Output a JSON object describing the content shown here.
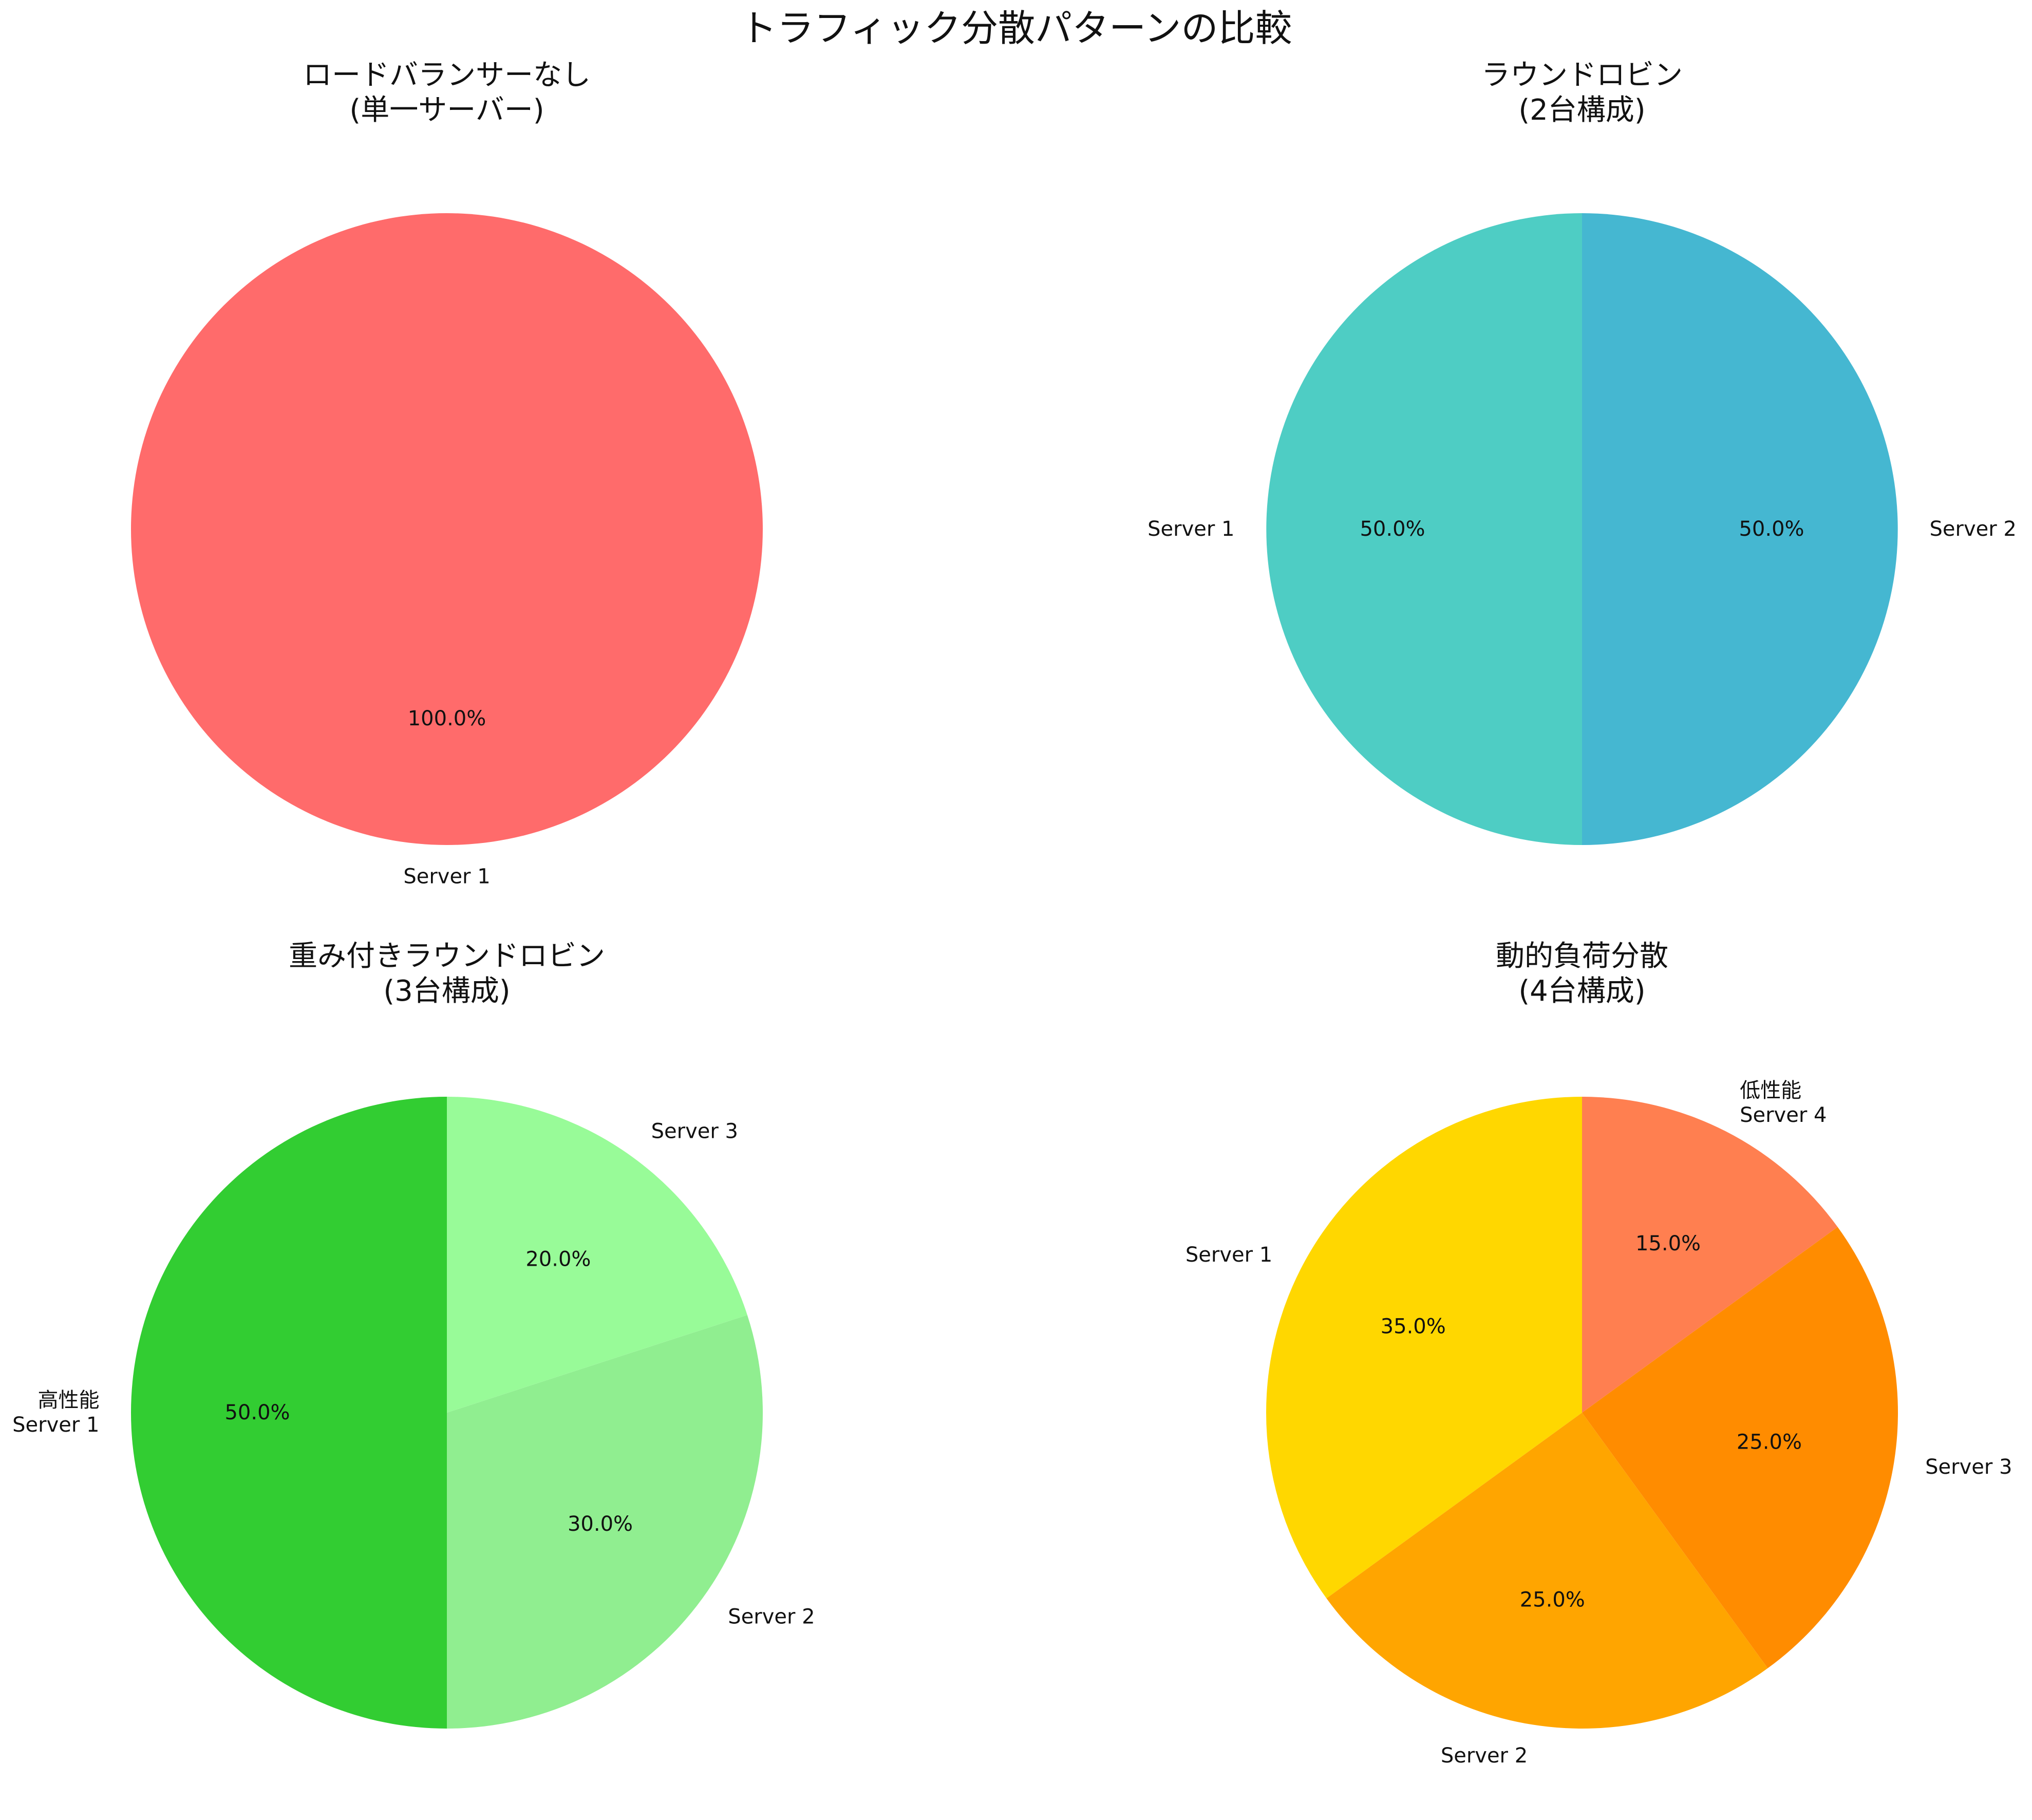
{
  "figure": {
    "title": "トラフィック分散パターンの比較"
  },
  "chart_data": [
    {
      "type": "pie",
      "title": "ロードバランサーなし\n(単一サーバー)",
      "labels": [
        "Server 1"
      ],
      "values": [
        100
      ],
      "colors": [
        "#FF6B6B"
      ],
      "autopct": [
        "100.0%"
      ],
      "start_angle": 90,
      "direction": "counterclockwise"
    },
    {
      "type": "pie",
      "title": "ラウンドロビン\n(2台構成)",
      "labels": [
        "Server 1",
        "Server 2"
      ],
      "values": [
        50,
        50
      ],
      "colors": [
        "#4ECDC4",
        "#45B7D1"
      ],
      "autopct": [
        "50.0%",
        "50.0%"
      ],
      "start_angle": 90,
      "direction": "counterclockwise"
    },
    {
      "type": "pie",
      "title": "重み付きラウンドロビン\n(3台構成)",
      "labels": [
        "高性能\nServer 1",
        "Server 2",
        "Server 3"
      ],
      "values": [
        50,
        30,
        20
      ],
      "colors": [
        "#32CD32",
        "#90EE90",
        "#98FB98"
      ],
      "autopct": [
        "50.0%",
        "30.0%",
        "20.0%"
      ],
      "start_angle": 90,
      "direction": "counterclockwise"
    },
    {
      "type": "pie",
      "title": "動的負荷分散\n(4台構成)",
      "labels": [
        "Server 1",
        "Server 2",
        "Server 3",
        "低性能\nServer 4"
      ],
      "values": [
        35,
        25,
        25,
        15
      ],
      "colors": [
        "#FFD700",
        "#FFA500",
        "#FF8C00",
        "#FF7F50"
      ],
      "autopct": [
        "35.0%",
        "25.0%",
        "25.0%",
        "15.0%"
      ],
      "start_angle": 90,
      "direction": "counterclockwise"
    }
  ]
}
